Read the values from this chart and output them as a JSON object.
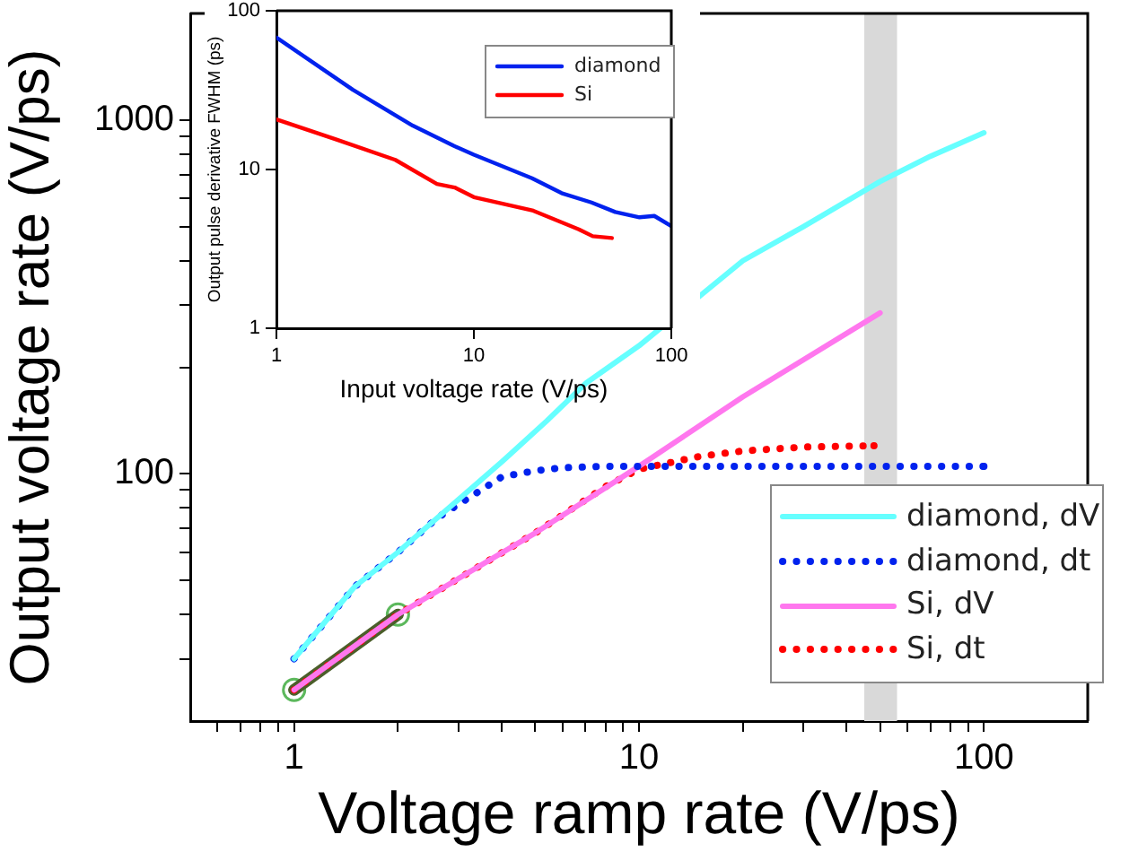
{
  "chart_data": [
    {
      "type": "line",
      "xlabel": "Voltage ramp rate (V/ps)",
      "ylabel": "Output voltage rate (V/ps)",
      "log": "xy",
      "xlim": [
        0.5,
        200
      ],
      "ylim": [
        20,
        2000
      ],
      "xticks": [
        {
          "value": 0.6,
          "label": null
        },
        {
          "value": 0.7,
          "label": null
        },
        {
          "value": 0.8,
          "label": null
        },
        {
          "value": 0.9,
          "label": null
        },
        1,
        {
          "value": 2,
          "label": null
        },
        {
          "value": 3,
          "label": null
        },
        {
          "value": 4,
          "label": null
        },
        {
          "value": 5,
          "label": null
        },
        {
          "value": 6,
          "label": null
        },
        {
          "value": 7,
          "label": null
        },
        {
          "value": 8,
          "label": null
        },
        {
          "value": 9,
          "label": null
        },
        10,
        {
          "value": 20,
          "label": null
        },
        {
          "value": 30,
          "label": null
        },
        {
          "value": 40,
          "label": null
        },
        {
          "value": 50,
          "label": null
        },
        {
          "value": 60,
          "label": null
        },
        {
          "value": 70,
          "label": null
        },
        {
          "value": 80,
          "label": null
        },
        {
          "value": 90,
          "label": null
        },
        100
      ],
      "yticks": [
        {
          "value": 30,
          "label": null
        },
        {
          "value": 40,
          "label": null
        },
        {
          "value": 50,
          "label": null
        },
        {
          "value": 60,
          "label": null
        },
        {
          "value": 70,
          "label": null
        },
        {
          "value": 80,
          "label": null
        },
        {
          "value": 90,
          "label": null
        },
        100,
        {
          "value": 200,
          "label": null
        },
        {
          "value": 300,
          "label": null
        },
        {
          "value": 400,
          "label": null
        },
        {
          "value": 500,
          "label": null
        },
        {
          "value": 600,
          "label": null
        },
        {
          "value": 700,
          "label": null
        },
        {
          "value": 800,
          "label": null
        },
        {
          "value": 900,
          "label": null
        },
        1000
      ],
      "bands": [
        {
          "axis": "x",
          "from": 45,
          "to": 56,
          "color": "#d9d9d9"
        }
      ],
      "grid": false,
      "legend": "bottom right",
      "marker": "none",
      "series": [
        {
          "name": "diamond, dV",
          "color": "#66ffff",
          "line_style": "solid",
          "x": [
            1,
            1.5,
            2,
            2.6,
            4,
            5.4,
            7,
            10,
            20,
            30,
            50,
            70,
            100
          ],
          "values": [
            30,
            48,
            60,
            75,
            108,
            141,
            180,
            230,
            400,
            500,
            670,
            790,
            920
          ]
        },
        {
          "name": "diamond, dt",
          "color": "#0022ee",
          "line_style": "dotted",
          "x": [
            1,
            1.5,
            2,
            2.6,
            3,
            4,
            5,
            6,
            8,
            10,
            20,
            50,
            100
          ],
          "values": [
            30,
            48,
            60,
            75,
            82,
            98,
            102,
            104,
            105,
            105,
            105,
            105,
            105
          ]
        },
        {
          "name": "Si, dV",
          "color": "#ff77ee",
          "line_style": "solid",
          "x": [
            1,
            2,
            5,
            10,
            20,
            50
          ],
          "values": [
            24.5,
            40,
            68,
            105,
            165,
            285
          ]
        },
        {
          "name": "Si, dt",
          "color": "#ff0000",
          "line_style": "dotted",
          "x": [
            1,
            2,
            5,
            8,
            10,
            15,
            20,
            30,
            48
          ],
          "values": [
            24.5,
            40,
            68,
            92,
            103,
            112,
            116,
            119,
            120
          ]
        },
        {
          "color": "#4b5e2a",
          "line_style": "solid",
          "x": [
            1,
            2
          ],
          "values": [
            24.5,
            40
          ]
        },
        {
          "type": "scatter",
          "color": "#5cb85c",
          "marker": "circle",
          "x": [
            1,
            2
          ],
          "values": [
            24.5,
            40
          ]
        }
      ]
    },
    {
      "type": "line",
      "xlabel": "Input voltage rate (V/ps)",
      "ylabel": "Output pulse derivative FWHM (ps)",
      "log": "xy",
      "xlim": [
        1,
        100
      ],
      "ylim": [
        1,
        100
      ],
      "xticks": [
        1,
        10,
        100
      ],
      "yticks": [
        1,
        10,
        100
      ],
      "grid": false,
      "legend": "top right",
      "marker": "none",
      "series": [
        {
          "name": "diamond",
          "color": "#0022ee",
          "line_style": "solid",
          "x": [
            1,
            2.44,
            4.9,
            7.9,
            10,
            19.7,
            27.8,
            39.4,
            52,
            69,
            82,
            100
          ],
          "values": [
            67.8,
            31.8,
            18.9,
            14.1,
            12.4,
            8.8,
            7.1,
            6.2,
            5.4,
            5.0,
            5.1,
            4.4
          ]
        },
        {
          "name": "Si",
          "color": "#ff0000",
          "line_style": "solid",
          "x": [
            1,
            2,
            4,
            6.5,
            8,
            10,
            20,
            34,
            40,
            50
          ],
          "values": [
            20.7,
            15.5,
            11.5,
            8.1,
            7.7,
            6.7,
            5.5,
            4.2,
            3.8,
            3.7
          ]
        }
      ]
    }
  ]
}
